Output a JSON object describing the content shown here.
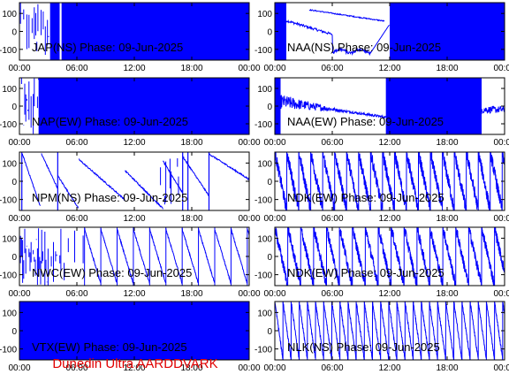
{
  "chart_data": {
    "type": "line",
    "time_ticks": [
      "00:00",
      "06:00",
      "12:00",
      "18:00",
      "00:00"
    ],
    "y_ticks": [
      100,
      0,
      -100
    ],
    "ylim": [
      -160,
      160
    ],
    "xlim_hours": [
      0,
      24
    ],
    "line_color": "#0000ff",
    "panels": [
      {
        "label": "JAP(NS) Phase: 09-Jun-2025",
        "title_pos": "left",
        "pattern": "noise_blocks",
        "blocks": [
          [
            0.0,
            1.6,
            0.35
          ],
          [
            1.6,
            3.2,
            0.45
          ],
          [
            3.2,
            4.2,
            1.0
          ],
          [
            4.4,
            24.0,
            1.0
          ]
        ]
      },
      {
        "label": "NAA(NS) Phase: 09-Jun-2025",
        "title_pos": "right",
        "pattern": "naa",
        "blocks": [
          [
            0.0,
            1.2,
            1.0
          ],
          [
            12.0,
            24.0,
            1.0
          ]
        ]
      },
      {
        "label": "NAP(EW) Phase: 09-Jun-2025",
        "title_pos": "left",
        "pattern": "noise_blocks",
        "blocks": [
          [
            0.0,
            2.0,
            0.55
          ],
          [
            2.0,
            3.0,
            1.0
          ],
          [
            3.0,
            24.0,
            1.0
          ]
        ]
      },
      {
        "label": "NAA(EW) Phase: 09-Jun-2025",
        "title_pos": "right",
        "pattern": "naa_ew",
        "blocks": [
          [
            0.0,
            0.6,
            1.0
          ],
          [
            11.6,
            21.6,
            1.0
          ]
        ]
      },
      {
        "label": "NPM(NS) Phase: 09-Jun-2025",
        "title_pos": "left",
        "pattern": "npm"
      },
      {
        "label": "NDK(EW) Phase: 09-Jun-2025",
        "title_pos": "right",
        "pattern": "sawtooth",
        "period": 1.25,
        "noise": 35
      },
      {
        "label": "NWC(EW) Phase: 09-Jun-2025",
        "title_pos": "left",
        "pattern": "nwc"
      },
      {
        "label": "NDK(EW) Phase: 09-Jun-2025",
        "title_pos": "right",
        "pattern": "sawtooth",
        "period": 1.35,
        "noise": 30
      },
      {
        "label": "VTX(EW) Phase: 09-Jun-2025",
        "title_pos": "left",
        "pattern": "noise_blocks",
        "blocks": [
          [
            0.0,
            24.0,
            1.0
          ]
        ]
      },
      {
        "label": "NLK(NS) Phase: 09-Jun-2025",
        "title_pos": "right",
        "pattern": "sawtooth",
        "period": 0.85,
        "noise": 10
      }
    ]
  },
  "footer": "Dunedin Ultra AARDDVARK"
}
